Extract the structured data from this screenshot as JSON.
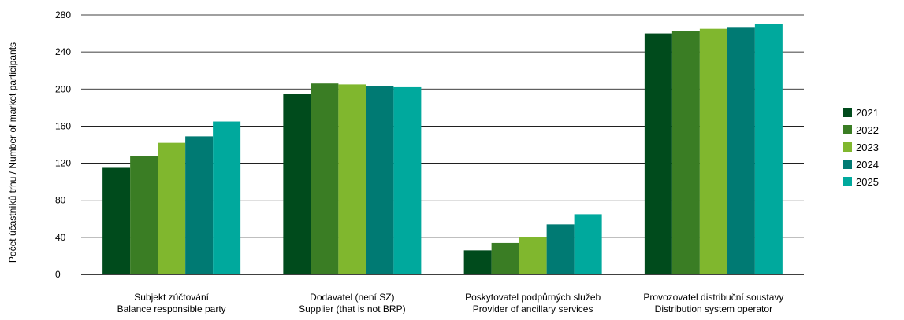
{
  "chart_data": {
    "type": "bar",
    "ylabel": "Počet účastníků trhu / Number of market participants",
    "ylim": [
      0,
      280
    ],
    "yticks": [
      0,
      40,
      80,
      120,
      160,
      200,
      240,
      280
    ],
    "grid": true,
    "legend_position": "right",
    "categories": [
      {
        "line1": "Subjekt zúčtování",
        "line2": "Balance responsible party"
      },
      {
        "line1": "Dodavatel (není SZ)",
        "line2": "Supplier (that is not BRP)"
      },
      {
        "line1": "Poskytovatel podpůrných služeb",
        "line2": "Provider of ancillary services"
      },
      {
        "line1": "Provozovatel distribuční soustavy",
        "line2": "Distribution system operator"
      }
    ],
    "series": [
      {
        "name": "2021",
        "color": "#004b1c",
        "values": [
          115,
          195,
          26,
          260
        ]
      },
      {
        "name": "2022",
        "color": "#3a7d24",
        "values": [
          128,
          206,
          34,
          263
        ]
      },
      {
        "name": "2023",
        "color": "#80b72e",
        "values": [
          142,
          205,
          40,
          265
        ]
      },
      {
        "name": "2024",
        "color": "#007a73",
        "values": [
          149,
          203,
          54,
          267
        ]
      },
      {
        "name": "2025",
        "color": "#00a99d",
        "values": [
          165,
          202,
          65,
          270
        ]
      }
    ]
  }
}
